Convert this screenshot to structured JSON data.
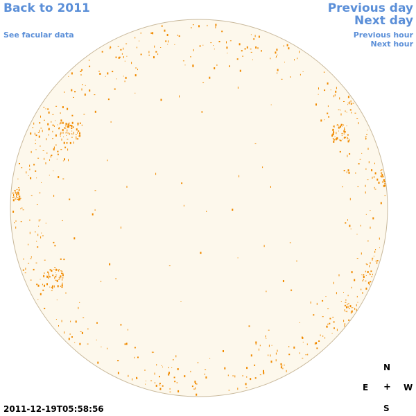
{
  "nav": {
    "back": "Back to 2011",
    "facular": "See facular data",
    "prev_day": "Previous day",
    "next_day": "Next day",
    "prev_hour": "Previous hour",
    "next_hour": "Next hour"
  },
  "timestamp": "2011-12-19T05:58:56",
  "compass": {
    "n": "N",
    "s": "S",
    "e": "E",
    "w": "W",
    "center": "+"
  },
  "colors": {
    "disk_fill": "#fdf8ec",
    "disk_stroke": "#c8b89a",
    "facula": "#f08a00",
    "link": "#5b8fd8"
  },
  "icons": {
    "center": "plus-icon"
  }
}
